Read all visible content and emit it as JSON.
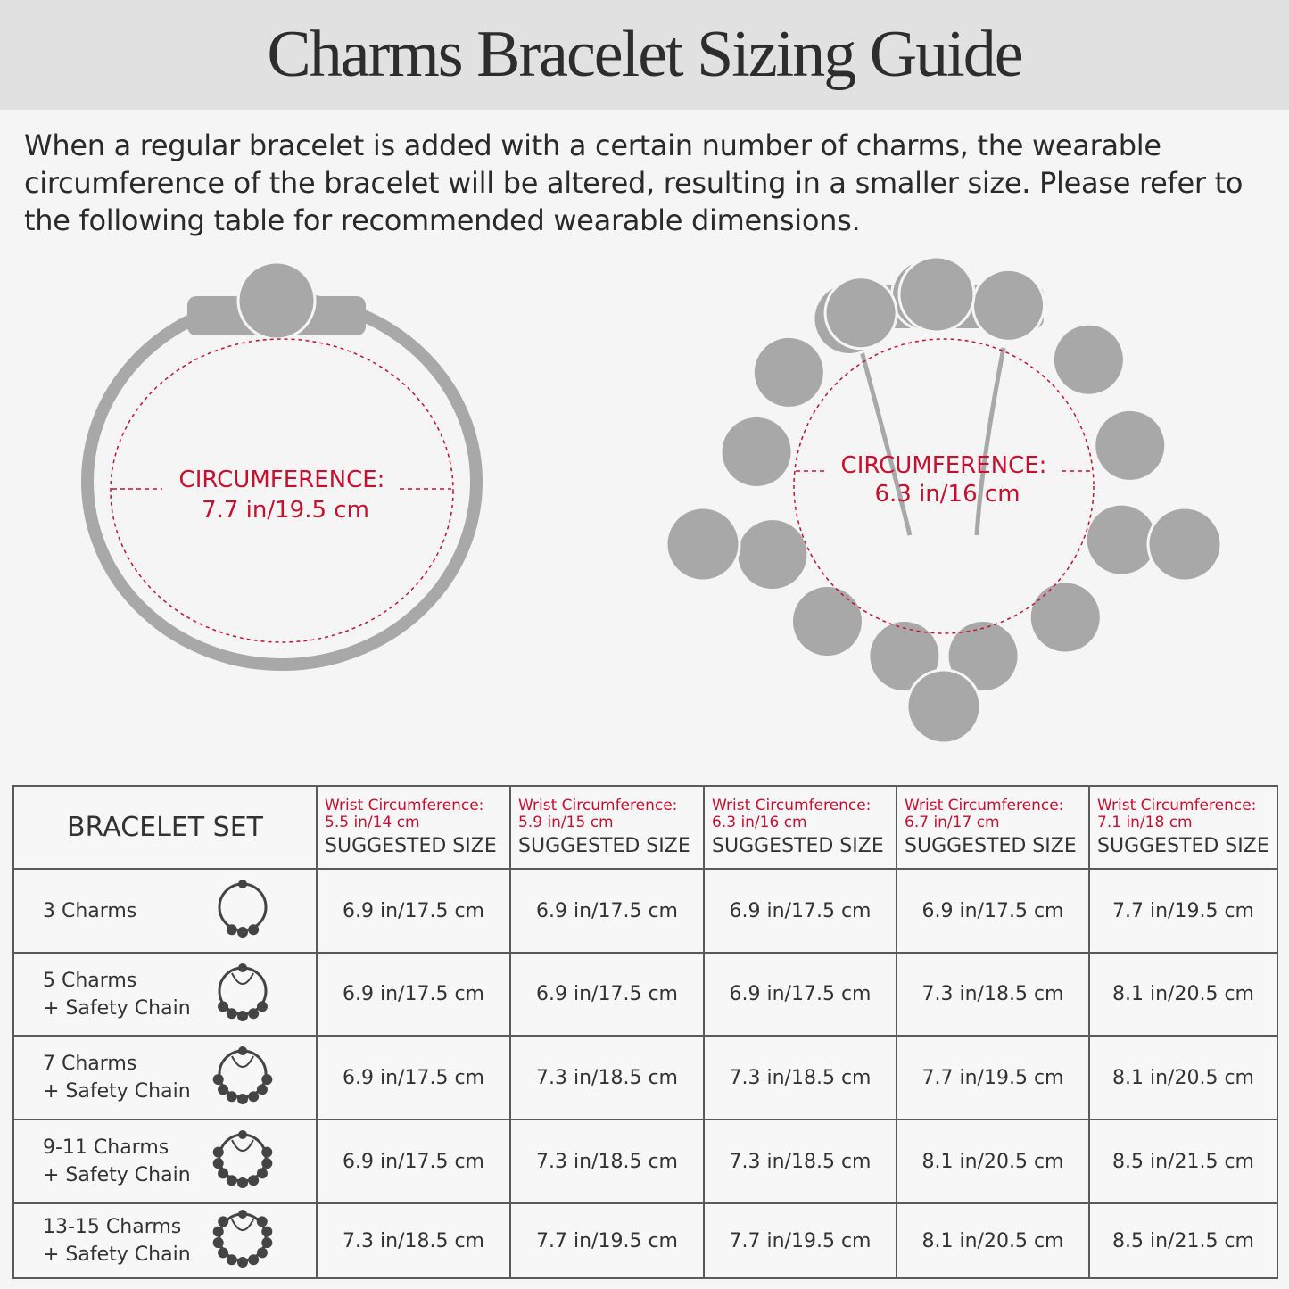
{
  "header": {
    "title": "Charms Bracelet Sizing Guide"
  },
  "intro": "When a regular bracelet is added with a certain number of charms, the wearable circumference of the bracelet will be altered, resulting in a smaller size. Please refer to the following table for recommended wearable dimensions.",
  "diagrams": [
    {
      "label": "CIRCUMFERENCE:",
      "value": "7.7 in/19.5 cm"
    },
    {
      "label": "CIRCUMFERENCE:",
      "value": "6.3 in/16 cm"
    }
  ],
  "table": {
    "corner": "BRACELET SET",
    "columns": [
      {
        "label": "Wrist Circumference:",
        "value": "5.5 in/14 cm",
        "size": "SUGGESTED SIZE"
      },
      {
        "label": "Wrist Circumference:",
        "value": "5.9 in/15 cm",
        "size": "SUGGESTED SIZE"
      },
      {
        "label": "Wrist Circumference:",
        "value": "6.3 in/16 cm",
        "size": "SUGGESTED SIZE"
      },
      {
        "label": "Wrist Circumference:",
        "value": "6.7 in/17 cm",
        "size": "SUGGESTED SIZE"
      },
      {
        "label": "Wrist Circumference:",
        "value": "7.1 in/18 cm",
        "size": "SUGGESTED SIZE"
      }
    ],
    "rows": [
      {
        "set": [
          "3 Charms"
        ],
        "sizes": [
          "6.9 in/17.5 cm",
          "6.9 in/17.5 cm",
          "6.9 in/17.5 cm",
          "6.9 in/17.5 cm",
          "7.7 in/19.5 cm"
        ]
      },
      {
        "set": [
          "5 Charms",
          "+ Safety Chain"
        ],
        "sizes": [
          "6.9 in/17.5 cm",
          "6.9 in/17.5 cm",
          "6.9 in/17.5 cm",
          "7.3 in/18.5 cm",
          "8.1 in/20.5 cm"
        ]
      },
      {
        "set": [
          "7 Charms",
          "+ Safety Chain"
        ],
        "sizes": [
          "6.9 in/17.5 cm",
          "7.3 in/18.5 cm",
          "7.3 in/18.5 cm",
          "7.7 in/19.5 cm",
          "8.1 in/20.5 cm"
        ]
      },
      {
        "set": [
          "9-11 Charms",
          "+ Safety Chain"
        ],
        "sizes": [
          "6.9 in/17.5 cm",
          "7.3 in/18.5 cm",
          "7.3 in/18.5 cm",
          "8.1 in/20.5 cm",
          "8.5 in/21.5 cm"
        ]
      },
      {
        "set": [
          "13-15 Charms",
          "+ Safety Chain"
        ],
        "sizes": [
          "7.3 in/18.5 cm",
          "7.7 in/19.5 cm",
          "7.7 in/19.5 cm",
          "8.1 in/20.5 cm",
          "8.5 in/21.5 cm"
        ]
      }
    ]
  }
}
